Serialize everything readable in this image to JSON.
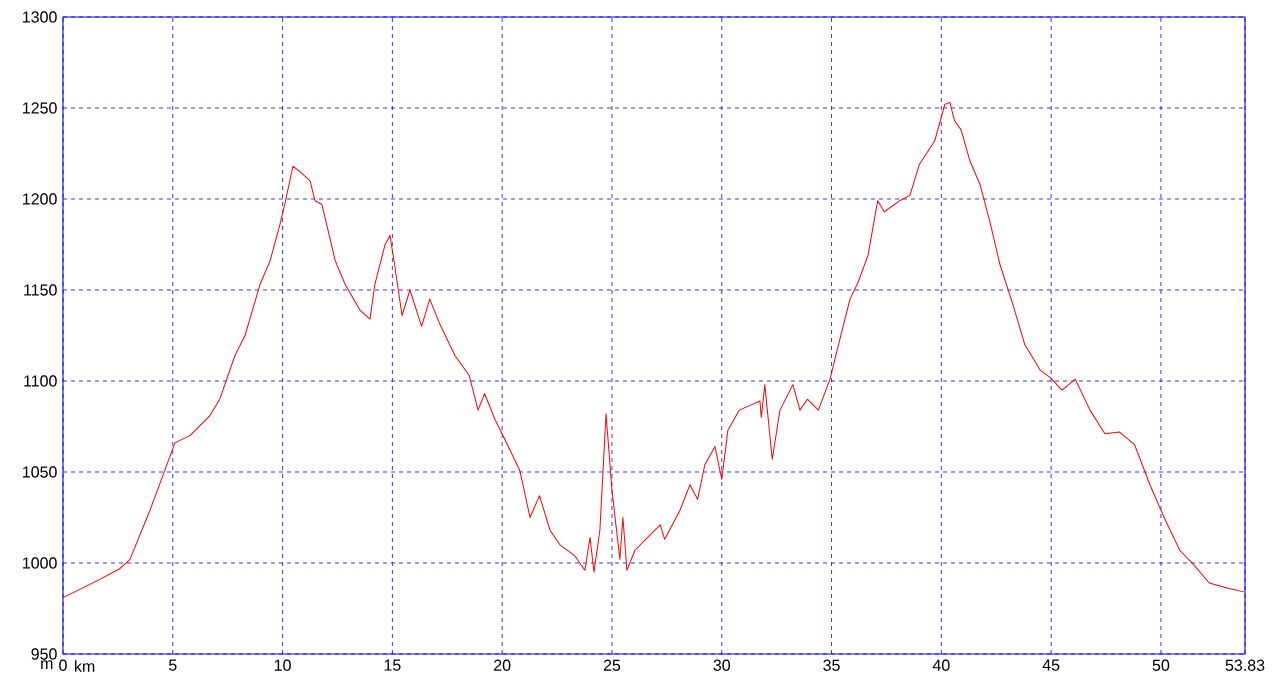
{
  "chart_data": {
    "type": "line",
    "xlabel": "km",
    "ylabel": "m",
    "x": [
      0,
      1.68,
      2.6,
      3.05,
      3.96,
      4.64,
      5.1,
      5.78,
      6.69,
      7.14,
      7.83,
      8.29,
      8.97,
      9.43,
      9.88,
      10.1,
      10.47,
      10.79,
      11.25,
      11.48,
      11.79,
      12.4,
      12.85,
      13.52,
      13.98,
      14.2,
      14.67,
      14.89,
      15.1,
      15.44,
      15.8,
      16.33,
      16.7,
      17.17,
      17.85,
      18.5,
      18.9,
      19.2,
      19.67,
      20.36,
      20.8,
      21.27,
      21.7,
      22.18,
      22.63,
      23.3,
      23.77,
      24.0,
      24.18,
      24.45,
      24.73,
      25.0,
      25.36,
      25.5,
      25.68,
      26.05,
      26.7,
      27.2,
      27.4,
      28.1,
      28.55,
      28.9,
      29.23,
      29.69,
      30.0,
      30.28,
      30.8,
      31.37,
      31.74,
      31.8,
      31.96,
      32.3,
      32.65,
      33.24,
      33.56,
      33.9,
      34.4,
      34.93,
      35.38,
      35.84,
      36.2,
      36.66,
      37.1,
      37.4,
      38.1,
      38.57,
      39.0,
      39.7,
      40.16,
      40.39,
      40.6,
      40.9,
      41.3,
      41.76,
      42.2,
      42.67,
      43.26,
      43.8,
      44.5,
      44.95,
      45.5,
      46.1,
      46.77,
      47.45,
      48.1,
      48.8,
      49.5,
      50.18,
      50.86,
      51.5,
      52.2,
      53.1,
      53.83
    ],
    "values": [
      981,
      991,
      997,
      1002,
      1029,
      1051,
      1066,
      1070,
      1081,
      1090,
      1114,
      1125,
      1153,
      1166,
      1186,
      1197,
      1218,
      1215,
      1210,
      1199,
      1197,
      1166,
      1153,
      1139,
      1134,
      1153,
      1175,
      1180,
      1164,
      1136,
      1150,
      1130,
      1145,
      1131,
      1114,
      1103,
      1084,
      1093,
      1079,
      1062,
      1051,
      1025,
      1037,
      1018,
      1010,
      1004,
      996,
      1014,
      995,
      1018,
      1082,
      1040,
      1002,
      1025,
      996,
      1007,
      1015,
      1021,
      1013,
      1029,
      1043,
      1035,
      1054,
      1064,
      1046,
      1073,
      1084,
      1087,
      1089,
      1080,
      1098,
      1057,
      1084,
      1098,
      1084,
      1090,
      1084,
      1101,
      1123,
      1145,
      1154,
      1169,
      1199,
      1193,
      1199,
      1202,
      1219,
      1232,
      1252,
      1253,
      1243,
      1238,
      1221,
      1208,
      1188,
      1164,
      1142,
      1120,
      1106,
      1102,
      1095,
      1101,
      1084,
      1071,
      1072,
      1065,
      1043,
      1024,
      1007,
      999,
      989,
      986,
      984
    ],
    "color": "#ff0000",
    "xlim": [
      0,
      53.83
    ],
    "ylim": [
      950,
      1300
    ],
    "xticks": [
      0,
      5,
      10,
      15,
      20,
      25,
      30,
      35,
      40,
      45,
      50,
      53.83
    ],
    "yticks": [
      950,
      1000,
      1050,
      1100,
      1150,
      1200,
      1250,
      1300
    ],
    "grid": true
  }
}
